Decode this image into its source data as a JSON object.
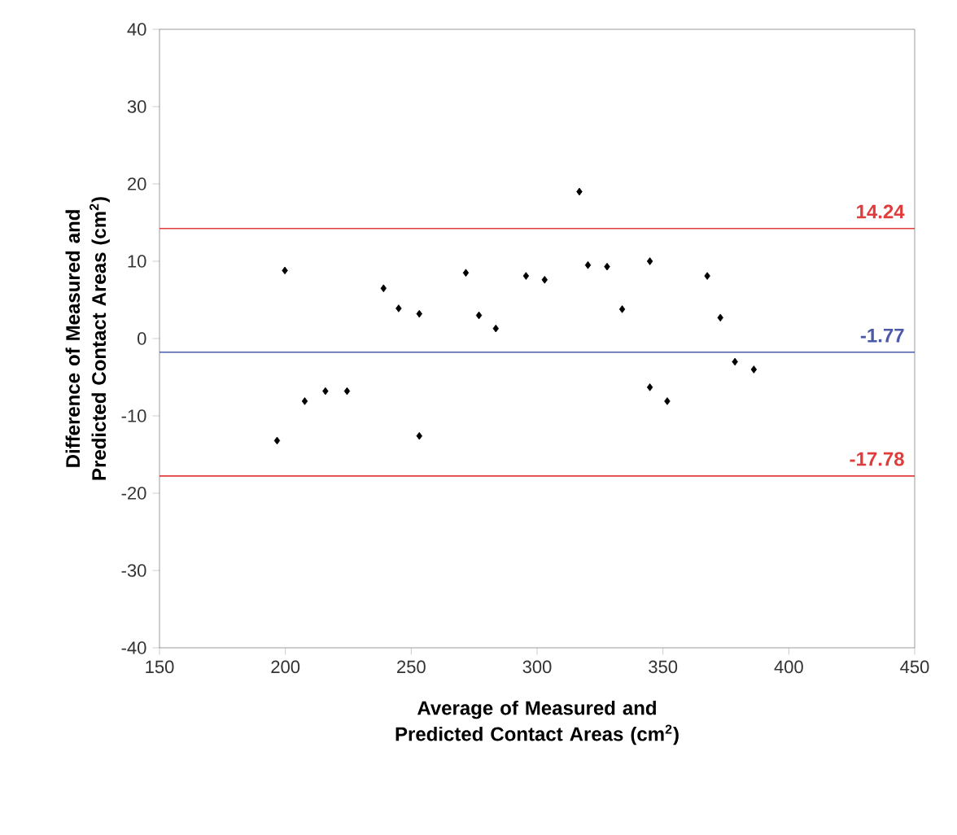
{
  "chart_data": {
    "type": "scatter",
    "xlabel": "Average of Measured and Predicted Contact Areas (cm$^{2}$)",
    "ylabel": "Difference of Measured and Predicted Contact Areas (cm$^{2}$)",
    "x": [
      199.8,
      239,
      245,
      253.2,
      271.7,
      276.9,
      283.6,
      295.6,
      303,
      316.8,
      196.7,
      207.7,
      215.9,
      224.5,
      253.2,
      320.2,
      327.8,
      344.8,
      333.8,
      367.6,
      372.8,
      378.6,
      386.1,
      344.8,
      351.7
    ],
    "series": [
      {
        "color": "#000000",
        "values": [
          8.8,
          6.5,
          3.9,
          3.2,
          8.5,
          3.0,
          1.3,
          8.1,
          7.6,
          19.0,
          -13.2,
          -8.1,
          -6.8,
          -6.8,
          -12.6,
          9.5,
          9.3,
          10.0,
          3.8,
          8.1,
          2.7,
          -3.0,
          -4.0,
          -6.3,
          -8.1
        ]
      }
    ],
    "xlim": [
      150,
      450
    ],
    "xticks": [
      150,
      200,
      250,
      300,
      350,
      400,
      450
    ],
    "ylim": [
      -40,
      40
    ],
    "yticks": [
      -40,
      -30,
      -20,
      -10,
      0,
      10,
      20,
      30,
      40
    ],
    "ref_lines": [
      {
        "axis": "y",
        "value": 14.24,
        "label": "14.24",
        "color": "#e03c3c"
      },
      {
        "axis": "y",
        "value": -1.77,
        "label": "-1.77",
        "color": "#4a5aa8"
      },
      {
        "axis": "y",
        "value": -17.78,
        "label": "-17.78",
        "color": "#e03c3c"
      }
    ],
    "marker": "diamond",
    "grid": false
  }
}
